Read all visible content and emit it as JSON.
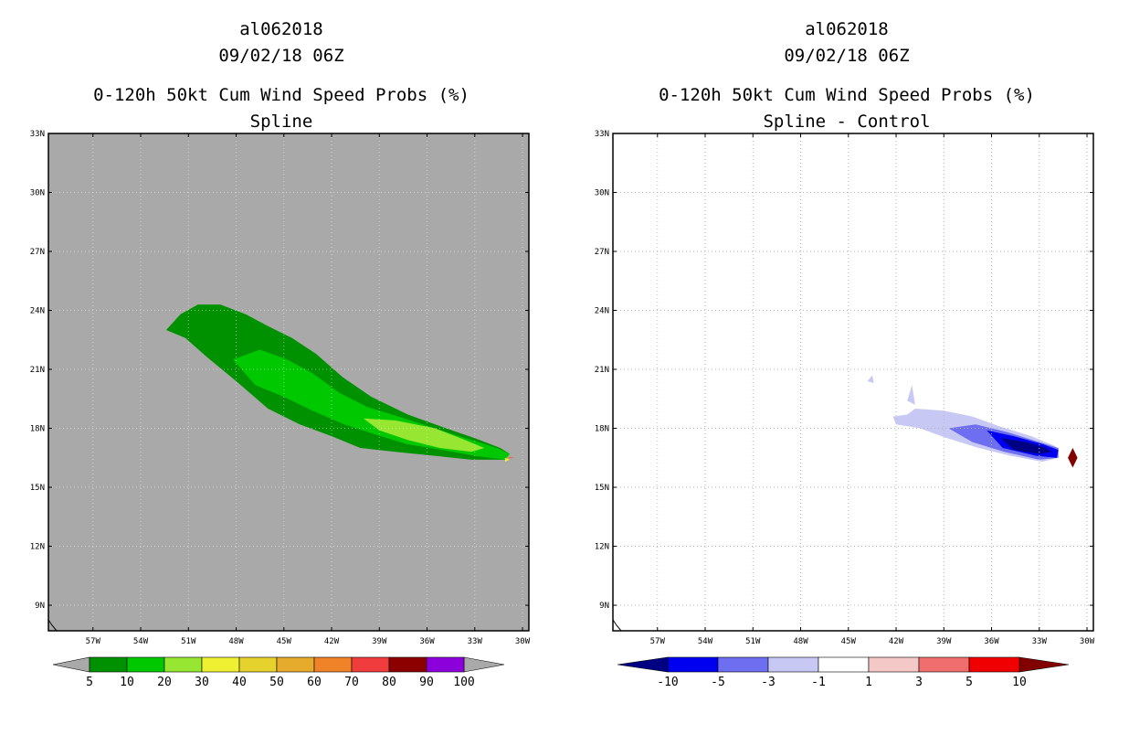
{
  "chart_data": [
    {
      "type": "heatmap",
      "title_lines": [
        "al062018",
        "09/02/18 06Z",
        "0-120h 50kt Cum Wind Speed Probs (%)",
        "Spline"
      ],
      "xlabel": "",
      "ylabel": "",
      "x_ticks": [
        "57W",
        "54W",
        "51W",
        "48W",
        "45W",
        "42W",
        "39W",
        "36W",
        "33W",
        "30W"
      ],
      "x_tick_values": [
        -57,
        -54,
        -51,
        -48,
        -45,
        -42,
        -39,
        -36,
        -33,
        -30
      ],
      "y_ticks": [
        "33N",
        "30N",
        "27N",
        "24N",
        "21N",
        "18N",
        "15N",
        "12N",
        "9N"
      ],
      "y_tick_values": [
        33,
        30,
        27,
        24,
        21,
        18,
        15,
        12,
        9
      ],
      "lon_range": [
        -59.8,
        -29.6
      ],
      "lat_range": [
        7.7,
        33.0
      ],
      "background_color": "#a9a9a9",
      "colorbar": {
        "labels": [
          "5",
          "10",
          "20",
          "30",
          "40",
          "50",
          "60",
          "70",
          "80",
          "90",
          "100"
        ],
        "colors": [
          "#009100",
          "#00c800",
          "#96e632",
          "#f0f032",
          "#e6d22d",
          "#e6aa2d",
          "#f08228",
          "#f03c3c",
          "#8c0000",
          "#8c00dc"
        ],
        "end_color": "#a9a9a9"
      },
      "contours": [
        {
          "level": 5,
          "color": "#009100",
          "points": [
            [
              -52.4,
              23.0
            ],
            [
              -51.5,
              23.8
            ],
            [
              -50.4,
              24.3
            ],
            [
              -49.0,
              24.3
            ],
            [
              -47.4,
              23.8
            ],
            [
              -46.0,
              23.2
            ],
            [
              -44.5,
              22.6
            ],
            [
              -43.0,
              21.8
            ],
            [
              -41.3,
              20.6
            ],
            [
              -39.5,
              19.6
            ],
            [
              -37.2,
              18.7
            ],
            [
              -34.8,
              18.0
            ],
            [
              -33.0,
              17.5
            ],
            [
              -31.4,
              17.0
            ],
            [
              -30.8,
              16.7
            ],
            [
              -31.1,
              16.4
            ],
            [
              -33.2,
              16.4
            ],
            [
              -35.5,
              16.6
            ],
            [
              -38.0,
              16.8
            ],
            [
              -40.2,
              17.0
            ],
            [
              -42.0,
              17.6
            ],
            [
              -44.0,
              18.2
            ],
            [
              -46.0,
              19.0
            ],
            [
              -48.0,
              20.4
            ],
            [
              -49.8,
              21.6
            ],
            [
              -51.2,
              22.6
            ]
          ]
        },
        {
          "level": 10,
          "color": "#00c800",
          "points": [
            [
              -48.2,
              21.5
            ],
            [
              -46.5,
              22.0
            ],
            [
              -44.8,
              21.5
            ],
            [
              -43.2,
              20.8
            ],
            [
              -41.5,
              19.8
            ],
            [
              -39.8,
              19.1
            ],
            [
              -37.8,
              18.6
            ],
            [
              -35.5,
              18.0
            ],
            [
              -33.6,
              17.5
            ],
            [
              -31.6,
              17.0
            ],
            [
              -30.8,
              16.7
            ],
            [
              -31.1,
              16.4
            ],
            [
              -33.0,
              16.6
            ],
            [
              -35.0,
              16.9
            ],
            [
              -37.3,
              17.2
            ],
            [
              -39.3,
              17.7
            ],
            [
              -41.2,
              18.2
            ],
            [
              -43.2,
              18.9
            ],
            [
              -45.0,
              19.6
            ],
            [
              -46.8,
              20.2
            ]
          ]
        },
        {
          "level": 20,
          "color": "#96e632",
          "points": [
            [
              -40.0,
              18.5
            ],
            [
              -38.0,
              18.4
            ],
            [
              -35.5,
              18.0
            ],
            [
              -33.6,
              17.4
            ],
            [
              -32.4,
              17.0
            ],
            [
              -33.2,
              16.8
            ],
            [
              -35.2,
              17.0
            ],
            [
              -37.2,
              17.4
            ],
            [
              -39.0,
              17.9
            ]
          ]
        },
        {
          "level": 30,
          "color": "#f0f032",
          "points": [
            [
              -31.1,
              16.5
            ],
            [
              -30.8,
              16.4
            ],
            [
              -31.1,
              16.3
            ]
          ]
        },
        {
          "level": 60,
          "color": "#f08228",
          "points": [
            [
              -30.9,
              16.55
            ],
            [
              -30.6,
              16.5
            ],
            [
              -30.9,
              16.45
            ]
          ]
        },
        {
          "level": 70,
          "color": "#f03c3c",
          "points": [
            [
              -30.8,
              16.52
            ],
            [
              -30.5,
              16.5
            ],
            [
              -30.8,
              16.48
            ]
          ]
        }
      ]
    },
    {
      "type": "heatmap",
      "title_lines": [
        "al062018",
        "09/02/18 06Z",
        "0-120h 50kt Cum Wind Speed Probs (%)",
        "Spline - Control"
      ],
      "xlabel": "",
      "ylabel": "",
      "x_ticks": [
        "57W",
        "54W",
        "51W",
        "48W",
        "45W",
        "42W",
        "39W",
        "36W",
        "33W",
        "30W"
      ],
      "x_tick_values": [
        -57,
        -54,
        -51,
        -48,
        -45,
        -42,
        -39,
        -36,
        -33,
        -30
      ],
      "y_ticks": [
        "33N",
        "30N",
        "27N",
        "24N",
        "21N",
        "18N",
        "15N",
        "12N",
        "9N"
      ],
      "y_tick_values": [
        33,
        30,
        27,
        24,
        21,
        18,
        15,
        12,
        9
      ],
      "lon_range": [
        -59.8,
        -29.6
      ],
      "lat_range": [
        7.7,
        33.0
      ],
      "grid": true,
      "background_color": "#ffffff",
      "colorbar": {
        "labels": [
          "-10",
          "-5",
          "-3",
          "-1",
          "1",
          "3",
          "5",
          "10"
        ],
        "colors": [
          "#000082",
          "#0000f0",
          "#6e6ef0",
          "#c8c8f5",
          "#ffffff",
          "#f5c8c8",
          "#f06e6e",
          "#f00000",
          "#820000"
        ]
      },
      "contours": [
        {
          "level": -1,
          "color": "#c8c8f5",
          "points": [
            [
              -42.2,
              18.6
            ],
            [
              -41.3,
              18.7
            ],
            [
              -40.8,
              19.0
            ],
            [
              -39.0,
              18.9
            ],
            [
              -37.2,
              18.6
            ],
            [
              -35.5,
              18.1
            ],
            [
              -33.5,
              17.6
            ],
            [
              -32.0,
              17.1
            ],
            [
              -31.8,
              16.5
            ],
            [
              -32.8,
              16.3
            ],
            [
              -34.8,
              16.6
            ],
            [
              -36.8,
              17.0
            ],
            [
              -38.8,
              17.5
            ],
            [
              -40.5,
              18.0
            ],
            [
              -42.0,
              18.2
            ]
          ]
        },
        {
          "level": -1,
          "color": "#c8c8f5",
          "points": [
            [
              -41.3,
              19.4
            ],
            [
              -41.0,
              20.2
            ],
            [
              -40.8,
              19.2
            ]
          ]
        },
        {
          "level": -1,
          "color": "#c8c8f5",
          "points": [
            [
              -43.8,
              20.4
            ],
            [
              -43.5,
              20.7
            ],
            [
              -43.4,
              20.3
            ]
          ]
        },
        {
          "level": -3,
          "color": "#6e6ef0",
          "points": [
            [
              -38.7,
              18.0
            ],
            [
              -37.0,
              18.2
            ],
            [
              -35.0,
              17.8
            ],
            [
              -33.0,
              17.3
            ],
            [
              -31.8,
              17.0
            ],
            [
              -31.8,
              16.5
            ],
            [
              -33.0,
              16.4
            ],
            [
              -35.2,
              16.8
            ],
            [
              -37.2,
              17.3
            ]
          ]
        },
        {
          "level": -5,
          "color": "#0000f0",
          "points": [
            [
              -36.3,
              17.9
            ],
            [
              -34.6,
              17.6
            ],
            [
              -32.8,
              17.2
            ],
            [
              -31.8,
              16.9
            ],
            [
              -31.9,
              16.5
            ],
            [
              -33.2,
              16.6
            ],
            [
              -35.3,
              17.0
            ]
          ]
        },
        {
          "level": -10,
          "color": "#000082",
          "points": [
            [
              -35.4,
              17.5
            ],
            [
              -33.8,
              17.3
            ],
            [
              -32.6,
              17.0
            ],
            [
              -32.2,
              16.8
            ],
            [
              -33.0,
              16.7
            ],
            [
              -34.6,
              16.9
            ]
          ]
        },
        {
          "level": 10,
          "color": "#820000",
          "points": [
            [
              -31.2,
              16.5
            ],
            [
              -30.9,
              17.0
            ],
            [
              -30.6,
              16.5
            ],
            [
              -30.9,
              16.0
            ]
          ]
        }
      ]
    }
  ]
}
